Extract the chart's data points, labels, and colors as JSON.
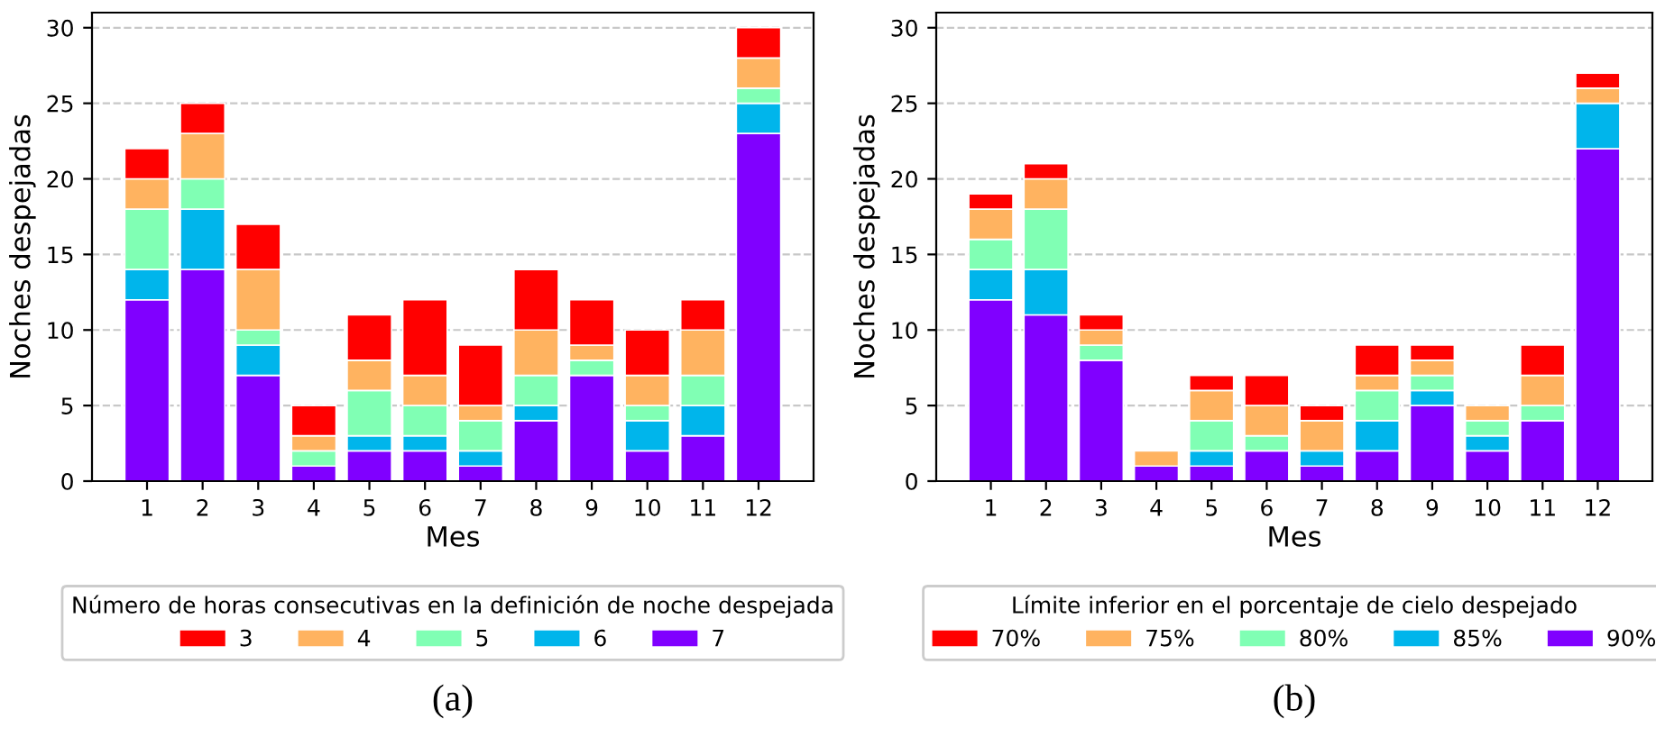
{
  "chart_data": [
    {
      "type": "bar",
      "stacked": true,
      "xlabel": "Mes",
      "ylabel": "Noches despejadas",
      "legend_title": "Número de horas consecutivas en la definición de noche despejada",
      "legend": "bottom",
      "grid": "y",
      "categories": [
        "1",
        "2",
        "3",
        "4",
        "5",
        "6",
        "7",
        "8",
        "9",
        "10",
        "11",
        "12"
      ],
      "ylim": [
        0,
        31
      ],
      "yticks": [
        0,
        5,
        10,
        15,
        20,
        25,
        30
      ],
      "annotations": [
        "(a)"
      ],
      "series": [
        {
          "name": "7",
          "color": "#8000ff",
          "values": [
            12,
            14,
            7,
            1,
            2,
            2,
            1,
            4,
            7,
            2,
            3,
            23
          ]
        },
        {
          "name": "6",
          "color": "#00b5eb",
          "values": [
            2,
            4,
            2,
            0,
            1,
            1,
            1,
            1,
            0,
            2,
            2,
            2
          ]
        },
        {
          "name": "5",
          "color": "#80ffb4",
          "values": [
            4,
            2,
            1,
            1,
            3,
            2,
            2,
            2,
            1,
            1,
            2,
            1
          ]
        },
        {
          "name": "4",
          "color": "#ffb360",
          "values": [
            2,
            3,
            4,
            1,
            2,
            2,
            1,
            3,
            1,
            2,
            3,
            2
          ]
        },
        {
          "name": "3",
          "color": "#ff0000",
          "values": [
            2,
            2,
            3,
            2,
            3,
            5,
            4,
            4,
            3,
            3,
            2,
            2
          ]
        }
      ]
    },
    {
      "type": "bar",
      "stacked": true,
      "xlabel": "Mes",
      "ylabel": "Noches despejadas",
      "legend_title": "Límite inferior en el porcentaje de cielo despejado",
      "legend": "bottom",
      "grid": "y",
      "categories": [
        "1",
        "2",
        "3",
        "4",
        "5",
        "6",
        "7",
        "8",
        "9",
        "10",
        "11",
        "12"
      ],
      "ylim": [
        0,
        31
      ],
      "yticks": [
        0,
        5,
        10,
        15,
        20,
        25,
        30
      ],
      "annotations": [
        "(b)"
      ],
      "series": [
        {
          "name": "90%",
          "color": "#8000ff",
          "values": [
            12,
            11,
            8,
            1,
            1,
            2,
            1,
            2,
            5,
            2,
            4,
            22
          ]
        },
        {
          "name": "85%",
          "color": "#00b5eb",
          "values": [
            2,
            3,
            0,
            0,
            1,
            0,
            1,
            2,
            1,
            1,
            0,
            3
          ]
        },
        {
          "name": "80%",
          "color": "#80ffb4",
          "values": [
            2,
            4,
            1,
            0,
            2,
            1,
            0,
            2,
            1,
            1,
            1,
            0
          ]
        },
        {
          "name": "75%",
          "color": "#ffb360",
          "values": [
            2,
            2,
            1,
            1,
            2,
            2,
            2,
            1,
            1,
            1,
            2,
            1
          ]
        },
        {
          "name": "70%",
          "color": "#ff0000",
          "values": [
            1,
            1,
            1,
            0,
            1,
            2,
            1,
            2,
            1,
            0,
            2,
            1
          ]
        }
      ]
    }
  ]
}
